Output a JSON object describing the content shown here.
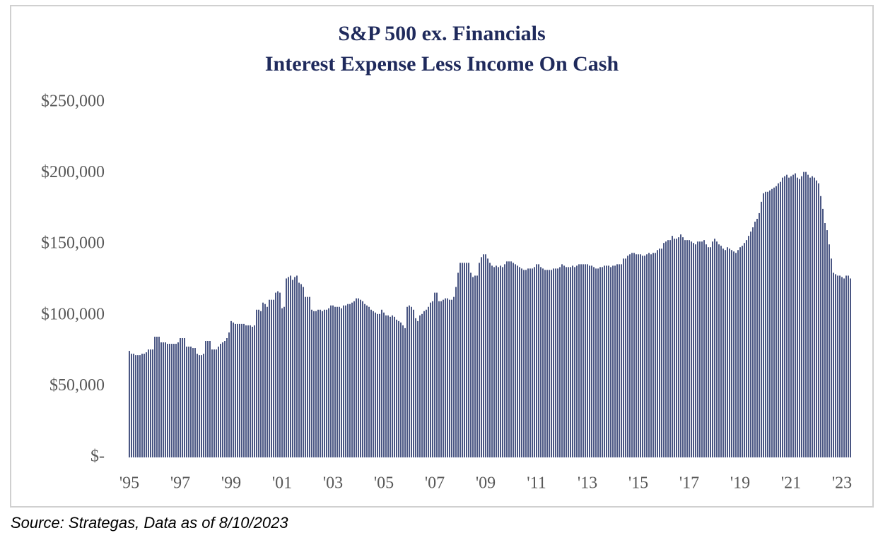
{
  "chart_data": {
    "type": "bar",
    "title": [
      "S&P 500 ex. Financials",
      "Interest Expense Less Income On Cash"
    ],
    "color": "#4a5683",
    "ylim": [
      0,
      250000
    ],
    "yticks": [
      {
        "value": 0,
        "label": "$-"
      },
      {
        "value": 50000,
        "label": "$50,000"
      },
      {
        "value": 100000,
        "label": "$100,000"
      },
      {
        "value": 150000,
        "label": "$150,000"
      },
      {
        "value": 200000,
        "label": "$200,000"
      },
      {
        "value": 250000,
        "label": "$250,000"
      }
    ],
    "categories": [
      "'95",
      null,
      null,
      null,
      null,
      null,
      null,
      null,
      null,
      null,
      null,
      null,
      null,
      null,
      null,
      null,
      null,
      null,
      null,
      null,
      null,
      null,
      null,
      null,
      "'97",
      null,
      null,
      null,
      null,
      null,
      null,
      null,
      null,
      null,
      null,
      null,
      null,
      null,
      null,
      null,
      null,
      null,
      null,
      null,
      null,
      null,
      null,
      null,
      "'99",
      null,
      null,
      null,
      null,
      null,
      null,
      null,
      null,
      null,
      null,
      null,
      null,
      null,
      null,
      null,
      null,
      null,
      null,
      null,
      null,
      null,
      null,
      null,
      "'01",
      null,
      null,
      null,
      null,
      null,
      null,
      null,
      null,
      null,
      null,
      null,
      null,
      null,
      null,
      null,
      null,
      null,
      null,
      null,
      null,
      null,
      null,
      null,
      "'03",
      null,
      null,
      null,
      null,
      null,
      null,
      null,
      null,
      null,
      null,
      null,
      null,
      null,
      null,
      null,
      null,
      null,
      null,
      null,
      null,
      null,
      null,
      null,
      "'05",
      null,
      null,
      null,
      null,
      null,
      null,
      null,
      null,
      null,
      null,
      null,
      null,
      null,
      null,
      null,
      null,
      null,
      null,
      null,
      null,
      null,
      null,
      null,
      "'07",
      null,
      null,
      null,
      null,
      null,
      null,
      null,
      null,
      null,
      null,
      null,
      null,
      null,
      null,
      null,
      null,
      null,
      null,
      null,
      null,
      null,
      null,
      null,
      "'09",
      null,
      null,
      null,
      null,
      null,
      null,
      null,
      null,
      null,
      null,
      null,
      null,
      null,
      null,
      null,
      null,
      null,
      null,
      null,
      null,
      null,
      null,
      null,
      "'11",
      null,
      null,
      null,
      null,
      null,
      null,
      null,
      null,
      null,
      null,
      null,
      null,
      null,
      null,
      null,
      null,
      null,
      null,
      null,
      null,
      null,
      null,
      null,
      "'13",
      null,
      null,
      null,
      null,
      null,
      null,
      null,
      null,
      null,
      null,
      null,
      null,
      null,
      null,
      null,
      null,
      null,
      null,
      null,
      null,
      null,
      null,
      null,
      "'15",
      null,
      null,
      null,
      null,
      null,
      null,
      null,
      null,
      null,
      null,
      null,
      null,
      null,
      null,
      null,
      null,
      null,
      null,
      null,
      null,
      null,
      null,
      null,
      "'17",
      null,
      null,
      null,
      null,
      null,
      null,
      null,
      null,
      null,
      null,
      null,
      null,
      null,
      null,
      null,
      null,
      null,
      null,
      null,
      null,
      null,
      null,
      null,
      "'19",
      null,
      null,
      null,
      null,
      null,
      null,
      null,
      null,
      null,
      null,
      null,
      null,
      null,
      null,
      null,
      null,
      null,
      null,
      null,
      null,
      null,
      null,
      null,
      "'21",
      null,
      null,
      null,
      null,
      null,
      null,
      null,
      null,
      null,
      null,
      null,
      null,
      null,
      null,
      null,
      null,
      null,
      null,
      null,
      null,
      null,
      null,
      null,
      "'23",
      null,
      null,
      null,
      null
    ],
    "values": [
      75000,
      73000,
      73000,
      72000,
      72000,
      72000,
      73000,
      73000,
      74000,
      76000,
      76000,
      76000,
      85000,
      85000,
      85000,
      81000,
      81000,
      81000,
      80000,
      80000,
      80000,
      80000,
      80000,
      81000,
      84000,
      84000,
      84000,
      78000,
      78000,
      78000,
      77000,
      77000,
      73000,
      72000,
      72000,
      73000,
      82000,
      82000,
      82000,
      76000,
      76000,
      76000,
      78000,
      80000,
      81000,
      82000,
      84000,
      88000,
      96000,
      95000,
      94000,
      94000,
      94000,
      94000,
      94000,
      93000,
      93000,
      93000,
      92000,
      93000,
      104000,
      104000,
      103000,
      109000,
      108000,
      106000,
      111000,
      111000,
      111000,
      116000,
      117000,
      116000,
      105000,
      106000,
      126000,
      127000,
      128000,
      125000,
      127000,
      128000,
      123000,
      122000,
      120000,
      113000,
      113000,
      113000,
      104000,
      103000,
      103000,
      104000,
      104000,
      103000,
      104000,
      104000,
      105000,
      107000,
      107000,
      106000,
      106000,
      106000,
      105000,
      107000,
      107000,
      108000,
      108000,
      109000,
      110000,
      112000,
      112000,
      111000,
      110000,
      108000,
      107000,
      106000,
      104000,
      103000,
      102000,
      101000,
      101000,
      104000,
      102000,
      100000,
      100000,
      99000,
      100000,
      99000,
      97000,
      96000,
      95000,
      93000,
      91000,
      106000,
      107000,
      106000,
      104000,
      98000,
      96000,
      100000,
      101000,
      103000,
      104000,
      106000,
      109000,
      110000,
      116000,
      116000,
      110000,
      110000,
      111000,
      112000,
      112000,
      111000,
      111000,
      113000,
      120000,
      130000,
      137000,
      137000,
      137000,
      137000,
      137000,
      130000,
      127000,
      128000,
      128000,
      137000,
      141000,
      143000,
      143000,
      140000,
      137000,
      135000,
      134000,
      135000,
      134000,
      135000,
      134000,
      136000,
      138000,
      138000,
      138000,
      137000,
      136000,
      135000,
      134000,
      133000,
      132000,
      132000,
      133000,
      133000,
      133000,
      134000,
      136000,
      136000,
      134000,
      133000,
      132000,
      132000,
      132000,
      132000,
      133000,
      133000,
      133000,
      134000,
      136000,
      135000,
      134000,
      134000,
      134000,
      135000,
      134000,
      135000,
      136000,
      136000,
      136000,
      136000,
      136000,
      135000,
      135000,
      134000,
      133000,
      133000,
      134000,
      134000,
      135000,
      135000,
      135000,
      134000,
      135000,
      135000,
      136000,
      136000,
      136000,
      140000,
      140000,
      142000,
      143000,
      144000,
      144000,
      143000,
      143000,
      143000,
      142000,
      142000,
      143000,
      144000,
      143000,
      144000,
      144000,
      146000,
      147000,
      147000,
      151000,
      152000,
      153000,
      153000,
      156000,
      154000,
      154000,
      155000,
      157000,
      155000,
      153000,
      153000,
      153000,
      152000,
      151000,
      150000,
      152000,
      152000,
      152000,
      153000,
      150000,
      148000,
      148000,
      152000,
      154000,
      152000,
      150000,
      149000,
      147000,
      146000,
      148000,
      147000,
      146000,
      145000,
      144000,
      146000,
      148000,
      149000,
      151000,
      153000,
      156000,
      159000,
      162000,
      166000,
      168000,
      172000,
      180000,
      186000,
      187000,
      187000,
      188000,
      189000,
      190000,
      191000,
      193000,
      194000,
      197000,
      198000,
      199000,
      197000,
      198000,
      199000,
      200000,
      197000,
      196000,
      198000,
      201000,
      201000,
      199000,
      197000,
      198000,
      197000,
      195000,
      193000,
      184000,
      175000,
      165000,
      160000,
      150000,
      140000,
      130000,
      129000,
      128000,
      128000,
      127000,
      126000,
      128000,
      128000,
      126000
    ]
  },
  "source": "Source: Strategas, Data as of 8/10/2023"
}
